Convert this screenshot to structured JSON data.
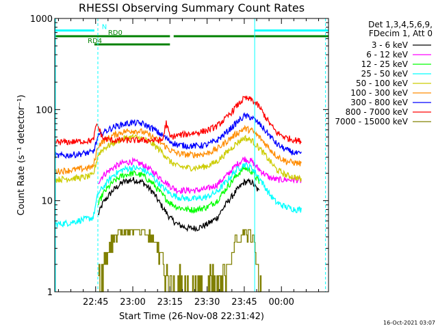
{
  "chart_data": {
    "type": "line",
    "title": "RHESSI Observing Summary Count Rates",
    "xlabel": "Start Time (26-Nov-08 22:31:42)",
    "ylabel": "Count Rate (s⁻¹ detector⁻¹)",
    "yscale": "log",
    "ylim": [
      1,
      1000
    ],
    "xlim_minutes": [
      -11.5,
      99
    ],
    "x_unit": "minutes after 22:40",
    "x_ticks": [
      {
        "t": 5,
        "label": "22:45"
      },
      {
        "t": 20,
        "label": "23:00"
      },
      {
        "t": 35,
        "label": "23:15"
      },
      {
        "t": 50,
        "label": "23:30"
      },
      {
        "t": 65,
        "label": "23:45"
      },
      {
        "t": 80,
        "label": "00:00"
      }
    ],
    "y_ticks": [
      {
        "v": 1,
        "label": "1"
      },
      {
        "v": 10,
        "label": "10"
      },
      {
        "v": 100,
        "label": "100"
      },
      {
        "v": 1000,
        "label": "1000"
      }
    ],
    "legend_header": [
      "Det 1,3,4,5,6,9,",
      "FDecim 1, Att 0"
    ],
    "series": [
      {
        "name": "3 - 6 keV",
        "color": "#000000",
        "data": [
          [
            6,
            7
          ],
          [
            8,
            9.5
          ],
          [
            12,
            13
          ],
          [
            16,
            16
          ],
          [
            20,
            17
          ],
          [
            24,
            16
          ],
          [
            28,
            12.5
          ],
          [
            32,
            8.5
          ],
          [
            35,
            6.5
          ],
          [
            38,
            5.5
          ],
          [
            42,
            5
          ],
          [
            46,
            5
          ],
          [
            50,
            5.5
          ],
          [
            54,
            6.5
          ],
          [
            58,
            9.5
          ],
          [
            62,
            13
          ],
          [
            65,
            16
          ],
          [
            68,
            16
          ],
          [
            71,
            12.5
          ]
        ]
      },
      {
        "name": "6 - 12 keV",
        "color": "#ff00ff",
        "data": [
          [
            6,
            16
          ],
          [
            8,
            19
          ],
          [
            12,
            23
          ],
          [
            16,
            26
          ],
          [
            20,
            27
          ],
          [
            24,
            25
          ],
          [
            28,
            21
          ],
          [
            32,
            17
          ],
          [
            35,
            14.5
          ],
          [
            38,
            13
          ],
          [
            42,
            13
          ],
          [
            46,
            13
          ],
          [
            50,
            13.5
          ],
          [
            54,
            15
          ],
          [
            58,
            19
          ],
          [
            62,
            25
          ],
          [
            65,
            29
          ],
          [
            68,
            27
          ],
          [
            71,
            22
          ],
          [
            75,
            18
          ],
          [
            78,
            17
          ],
          [
            82,
            17
          ],
          [
            86,
            17
          ],
          [
            88,
            16.5
          ]
        ]
      },
      {
        "name": "12 - 25 keV",
        "color": "#00ff00",
        "data": [
          [
            6,
            9
          ],
          [
            8,
            12
          ],
          [
            12,
            16
          ],
          [
            16,
            19
          ],
          [
            20,
            20
          ],
          [
            24,
            19
          ],
          [
            28,
            15.5
          ],
          [
            32,
            11.5
          ],
          [
            35,
            9.5
          ],
          [
            38,
            8.5
          ],
          [
            42,
            8
          ],
          [
            46,
            8
          ],
          [
            50,
            8.5
          ],
          [
            54,
            10
          ],
          [
            58,
            14
          ],
          [
            62,
            19
          ],
          [
            65,
            23
          ],
          [
            68,
            21
          ],
          [
            71,
            16
          ]
        ]
      },
      {
        "name": "25 - 50 keV",
        "color": "#00ffff",
        "data": [
          [
            -11.5,
            5.5
          ],
          [
            -6,
            5.7
          ],
          [
            0,
            6.2
          ],
          [
            4,
            6.5
          ],
          [
            6,
            12
          ],
          [
            8,
            14
          ],
          [
            12,
            19
          ],
          [
            16,
            22
          ],
          [
            20,
            23
          ],
          [
            24,
            22
          ],
          [
            28,
            18.5
          ],
          [
            32,
            14
          ],
          [
            35,
            12
          ],
          [
            38,
            11
          ],
          [
            42,
            10.5
          ],
          [
            46,
            10.5
          ],
          [
            50,
            11
          ],
          [
            54,
            12.5
          ],
          [
            58,
            16.5
          ],
          [
            62,
            22
          ],
          [
            65,
            25
          ],
          [
            68,
            23
          ],
          [
            71,
            18
          ],
          [
            75,
            12
          ],
          [
            78,
            9.5
          ],
          [
            82,
            8.5
          ],
          [
            86,
            8
          ],
          [
            88,
            8
          ]
        ]
      },
      {
        "name": "50 - 100 keV",
        "color": "#cccc00",
        "data": [
          [
            -11.5,
            17
          ],
          [
            -6,
            17.5
          ],
          [
            0,
            18
          ],
          [
            4,
            19
          ],
          [
            6,
            32
          ],
          [
            8,
            37
          ],
          [
            12,
            43
          ],
          [
            16,
            48
          ],
          [
            20,
            50
          ],
          [
            24,
            48
          ],
          [
            28,
            42
          ],
          [
            32,
            34
          ],
          [
            35,
            27
          ],
          [
            38,
            24
          ],
          [
            42,
            23
          ],
          [
            46,
            23
          ],
          [
            50,
            24
          ],
          [
            54,
            27
          ],
          [
            58,
            34
          ],
          [
            62,
            43
          ],
          [
            65,
            49
          ],
          [
            68,
            46
          ],
          [
            71,
            38
          ],
          [
            75,
            28
          ],
          [
            78,
            22
          ],
          [
            82,
            19
          ],
          [
            86,
            18
          ],
          [
            88,
            17
          ]
        ]
      },
      {
        "name": "100 - 300 keV",
        "color": "#ff8c00",
        "data": [
          [
            -11.5,
            21
          ],
          [
            -6,
            21.5
          ],
          [
            0,
            22.5
          ],
          [
            4,
            23.5
          ],
          [
            6,
            40
          ],
          [
            8,
            45
          ],
          [
            12,
            52
          ],
          [
            16,
            57
          ],
          [
            20,
            59
          ],
          [
            24,
            57
          ],
          [
            28,
            50
          ],
          [
            32,
            42
          ],
          [
            35,
            36
          ],
          [
            38,
            33
          ],
          [
            42,
            32
          ],
          [
            46,
            32
          ],
          [
            50,
            33
          ],
          [
            54,
            37
          ],
          [
            58,
            45
          ],
          [
            62,
            55
          ],
          [
            65,
            62
          ],
          [
            68,
            59
          ],
          [
            71,
            50
          ],
          [
            75,
            38
          ],
          [
            78,
            31
          ],
          [
            82,
            27
          ],
          [
            86,
            26
          ],
          [
            88,
            25.5
          ]
        ]
      },
      {
        "name": "300 - 800 keV",
        "color": "#0000ff",
        "data": [
          [
            -11.5,
            31
          ],
          [
            -6,
            31.5
          ],
          [
            0,
            33
          ],
          [
            4,
            34
          ],
          [
            6,
            50
          ],
          [
            8,
            56
          ],
          [
            12,
            64
          ],
          [
            16,
            69
          ],
          [
            20,
            72
          ],
          [
            24,
            70
          ],
          [
            28,
            62
          ],
          [
            32,
            52
          ],
          [
            35,
            45
          ],
          [
            38,
            41
          ],
          [
            42,
            40
          ],
          [
            46,
            40
          ],
          [
            50,
            41
          ],
          [
            54,
            46
          ],
          [
            58,
            57
          ],
          [
            62,
            72
          ],
          [
            65,
            85
          ],
          [
            68,
            82
          ],
          [
            71,
            70
          ],
          [
            75,
            53
          ],
          [
            78,
            42
          ],
          [
            82,
            36
          ],
          [
            86,
            33
          ],
          [
            88,
            32
          ]
        ]
      },
      {
        "name": "800 - 7000 keV",
        "color": "#ff0000",
        "data": [
          [
            -11.5,
            44
          ],
          [
            -6,
            44
          ],
          [
            0,
            45
          ],
          [
            4,
            46
          ],
          [
            5.5,
            70
          ],
          [
            8,
            48
          ],
          [
            12,
            46
          ],
          [
            16,
            46
          ],
          [
            20,
            46
          ],
          [
            24,
            46
          ],
          [
            28,
            46
          ],
          [
            32,
            46
          ],
          [
            33.5,
            72
          ],
          [
            35,
            50
          ],
          [
            38,
            52
          ],
          [
            42,
            54
          ],
          [
            46,
            56
          ],
          [
            50,
            59
          ],
          [
            54,
            66
          ],
          [
            58,
            82
          ],
          [
            62,
            110
          ],
          [
            65,
            133
          ],
          [
            68,
            128
          ],
          [
            71,
            108
          ],
          [
            75,
            72
          ],
          [
            78,
            56
          ],
          [
            82,
            49
          ],
          [
            86,
            46
          ],
          [
            88,
            45
          ]
        ]
      },
      {
        "name": "7000 - 15000 keV",
        "color": "#808000",
        "data": [
          [
            6,
            1.5
          ],
          [
            8,
            2
          ],
          [
            10,
            3
          ],
          [
            12,
            4
          ],
          [
            14,
            4.5
          ],
          [
            16,
            4.7
          ],
          [
            19,
            4.8
          ],
          [
            22,
            4.7
          ],
          [
            25,
            4.5
          ],
          [
            27,
            4
          ],
          [
            29,
            3.4
          ],
          [
            31,
            2.7
          ],
          [
            32.5,
            2
          ],
          [
            34,
            1.3
          ],
          [
            35,
            1
          ],
          [
            55,
            1
          ],
          [
            56.5,
            1.5
          ],
          [
            58,
            2
          ],
          [
            60,
            2.8
          ],
          [
            62,
            3.5
          ],
          [
            64,
            4.2
          ],
          [
            66,
            4.6
          ],
          [
            68,
            4
          ],
          [
            69.5,
            3
          ],
          [
            70,
            1.5
          ],
          [
            71,
            1.1
          ],
          [
            72,
            1
          ]
        ]
      }
    ],
    "flags": [
      {
        "name": "N",
        "color": "#00ffff",
        "y_frac": 0.044,
        "segments": [
          [
            -11.5,
            4.5
          ],
          [
            69,
            99
          ]
        ]
      },
      {
        "name": "RD0",
        "color": "#008000",
        "y_frac": 0.065,
        "segments": [
          [
            -11.5,
            35
          ],
          [
            36.5,
            99
          ]
        ]
      },
      {
        "name": "RD4",
        "color": "#008000",
        "y_frac": 0.095,
        "segments": [
          [
            4.5,
            35
          ]
        ]
      }
    ],
    "gridlines": false,
    "legend_position": "right"
  },
  "timestamp": "16-Oct-2021 03:07"
}
